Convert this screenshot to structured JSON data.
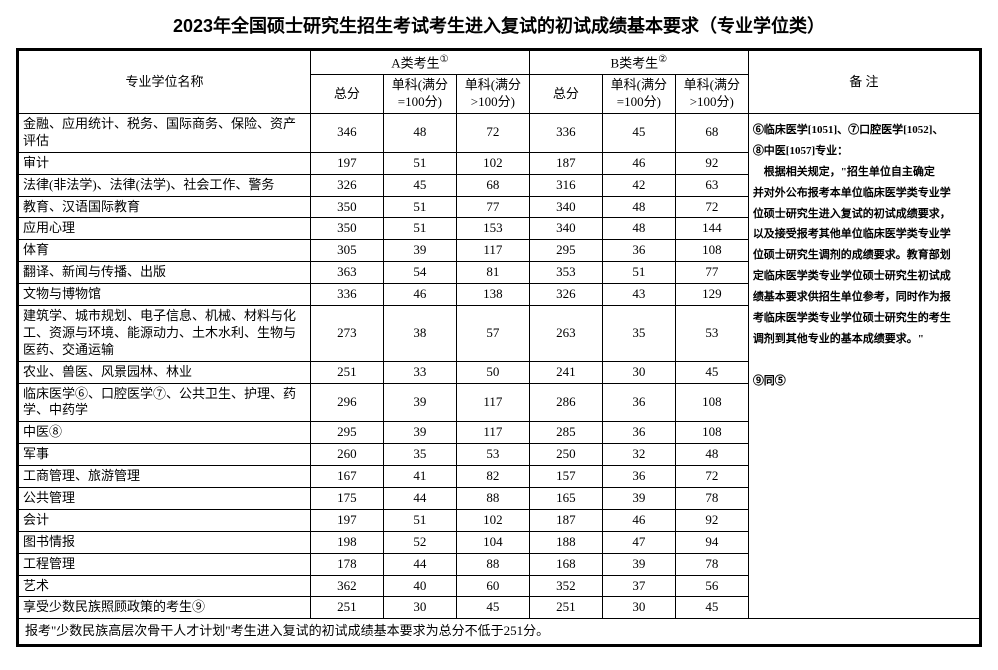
{
  "title": "2023年全国硕士研究生招生考试考生进入复试的初试成绩基本要求（专业学位类）",
  "headers": {
    "name": "专业学位名称",
    "groupA": "A类考生",
    "groupA_sup": "①",
    "groupB": "B类考生",
    "groupB_sup": "②",
    "remark": "备  注",
    "total": "总分",
    "sub100": "单科(满分=100分)",
    "subOver100": "单科(满分>100分)"
  },
  "rows": [
    {
      "name": "金融、应用统计、税务、国际商务、保险、资产评估",
      "a": [
        346,
        48,
        72
      ],
      "b": [
        336,
        45,
        68
      ]
    },
    {
      "name": "审计",
      "a": [
        197,
        51,
        102
      ],
      "b": [
        187,
        46,
        92
      ]
    },
    {
      "name": "法律(非法学)、法律(法学)、社会工作、警务",
      "a": [
        326,
        45,
        68
      ],
      "b": [
        316,
        42,
        63
      ]
    },
    {
      "name": "教育、汉语国际教育",
      "a": [
        350,
        51,
        77
      ],
      "b": [
        340,
        48,
        72
      ]
    },
    {
      "name": "应用心理",
      "a": [
        350,
        51,
        153
      ],
      "b": [
        340,
        48,
        144
      ]
    },
    {
      "name": "体育",
      "a": [
        305,
        39,
        117
      ],
      "b": [
        295,
        36,
        108
      ]
    },
    {
      "name": "翻译、新闻与传播、出版",
      "a": [
        363,
        54,
        81
      ],
      "b": [
        353,
        51,
        77
      ]
    },
    {
      "name": "文物与博物馆",
      "a": [
        336,
        46,
        138
      ],
      "b": [
        326,
        43,
        129
      ]
    },
    {
      "name": "建筑学、城市规划、电子信息、机械、材料与化工、资源与环境、能源动力、土木水利、生物与医药、交通运输",
      "a": [
        273,
        38,
        57
      ],
      "b": [
        263,
        35,
        53
      ]
    },
    {
      "name": "农业、兽医、风景园林、林业",
      "a": [
        251,
        33,
        50
      ],
      "b": [
        241,
        30,
        45
      ]
    },
    {
      "name": "临床医学⑥、口腔医学⑦、公共卫生、护理、药学、中药学",
      "a": [
        296,
        39,
        117
      ],
      "b": [
        286,
        36,
        108
      ]
    },
    {
      "name": "中医⑧",
      "a": [
        295,
        39,
        117
      ],
      "b": [
        285,
        36,
        108
      ]
    },
    {
      "name": "军事",
      "a": [
        260,
        35,
        53
      ],
      "b": [
        250,
        32,
        48
      ]
    },
    {
      "name": "工商管理、旅游管理",
      "a": [
        167,
        41,
        82
      ],
      "b": [
        157,
        36,
        72
      ]
    },
    {
      "name": "公共管理",
      "a": [
        175,
        44,
        88
      ],
      "b": [
        165,
        39,
        78
      ]
    },
    {
      "name": "会计",
      "a": [
        197,
        51,
        102
      ],
      "b": [
        187,
        46,
        92
      ]
    },
    {
      "name": "图书情报",
      "a": [
        198,
        52,
        104
      ],
      "b": [
        188,
        47,
        94
      ]
    },
    {
      "name": "工程管理",
      "a": [
        178,
        44,
        88
      ],
      "b": [
        168,
        39,
        78
      ]
    },
    {
      "name": "艺术",
      "a": [
        362,
        40,
        60
      ],
      "b": [
        352,
        37,
        56
      ]
    },
    {
      "name": "享受少数民族照顾政策的考生⑨",
      "a": [
        251,
        30,
        45
      ],
      "b": [
        251,
        30,
        45
      ]
    }
  ],
  "remark_lines": [
    "⑥临床医学[1051]、⑦口腔医学[1052]、",
    "⑧中医[1057]专业：",
    "　根据相关规定，\"招生单位自主确定",
    "并对外公布报考本单位临床医学类专业学",
    "位硕士研究生进入复试的初试成绩要求，",
    "以及接受报考其他单位临床医学类专业学",
    "位硕士研究生调剂的成绩要求。教育部划",
    "定临床医学类专业学位硕士研究生初试成",
    "绩基本要求供招生单位参考，同时作为报",
    "考临床医学类专业学位硕士研究生的考生",
    "调剂到其他专业的基本成绩要求。\"",
    "",
    "⑨同⑤"
  ],
  "footer": "报考\"少数民族高层次骨干人才计划\"考生进入复试的初试成绩基本要求为总分不低于251分。"
}
